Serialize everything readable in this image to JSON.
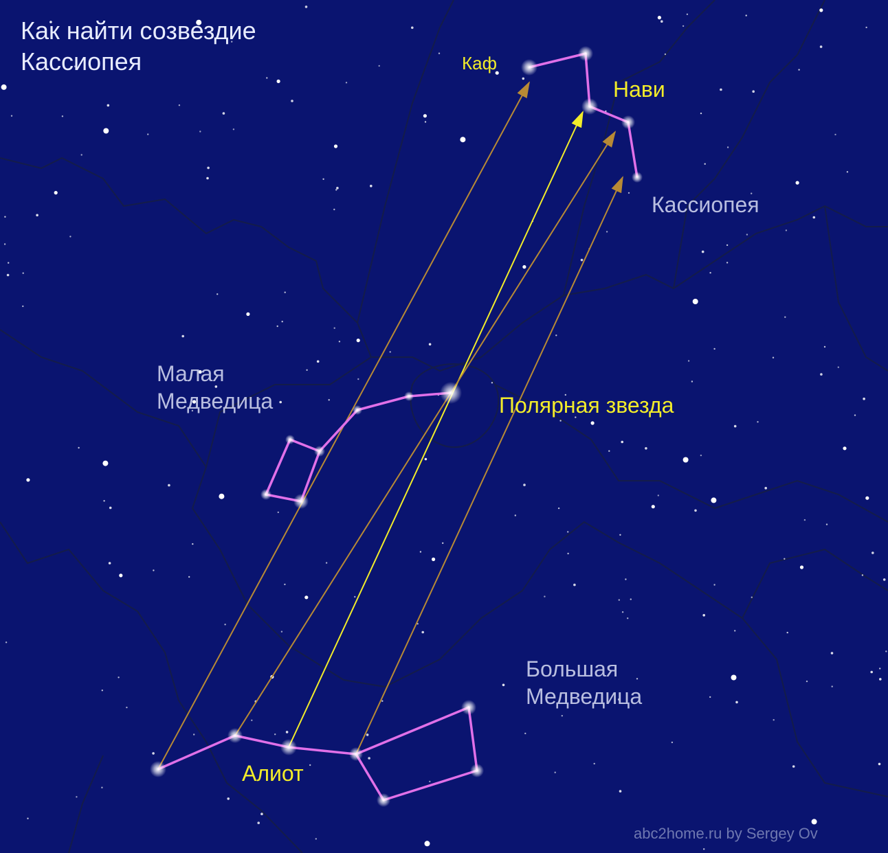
{
  "title": "Как найти созвездие\nКассиопея",
  "labels": {
    "kaf": "Каф",
    "navi": "Нави",
    "cassiopeia": "Кассиопея",
    "little_dipper": "Малая\nМедведица",
    "polaris": "Полярная звезда",
    "big_dipper": "Большая\nМедведица",
    "alioth": "Алиот"
  },
  "credit": "abc2home.ru by Sergey Ov",
  "colors": {
    "background": "#0a1470",
    "constellation_lines": "#e070e8",
    "pointer_yellow": "#f2ec2a",
    "pointer_brown": "#b88a35",
    "gray_text": "#b9bee0",
    "title_text": "#e8ecff"
  }
}
